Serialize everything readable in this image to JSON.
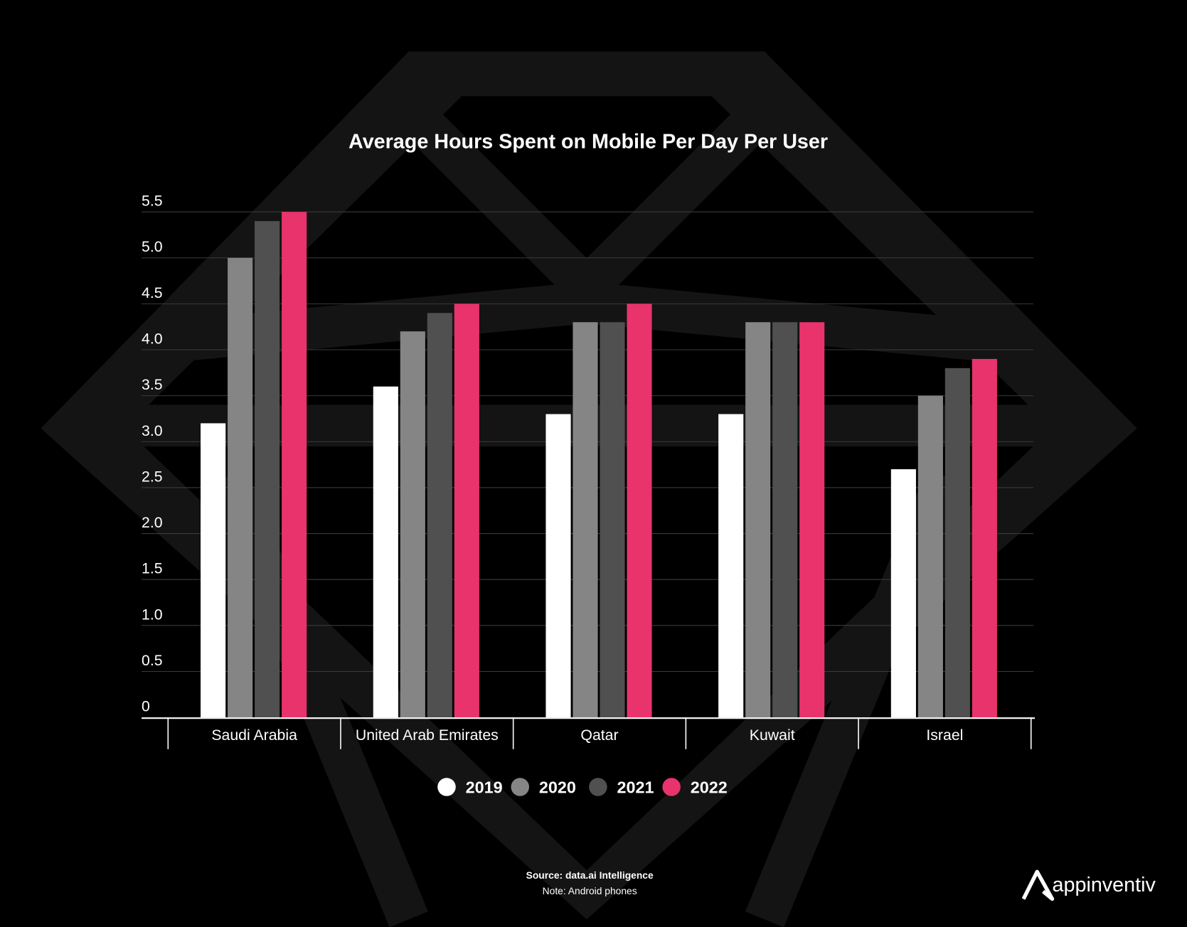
{
  "chart_data": {
    "type": "bar",
    "title": "Average Hours Spent on Mobile Per Day Per User",
    "categories": [
      "Saudi Arabia",
      "United Arab Emirates",
      "Qatar",
      "Kuwait",
      "Israel"
    ],
    "series": [
      {
        "name": "2019",
        "color": "#ffffff",
        "values": [
          3.2,
          3.6,
          3.3,
          3.3,
          2.7
        ]
      },
      {
        "name": "2020",
        "color": "#858585",
        "values": [
          5.0,
          4.2,
          4.3,
          4.3,
          3.5
        ]
      },
      {
        "name": "2021",
        "color": "#505050",
        "values": [
          5.4,
          4.4,
          4.3,
          4.3,
          3.8
        ]
      },
      {
        "name": "2022",
        "color": "#e8336d",
        "values": [
          5.5,
          4.5,
          4.5,
          4.3,
          3.9
        ]
      }
    ],
    "yticks": [
      "0",
      "0.5",
      "1.0",
      "1.5",
      "2.0",
      "2.5",
      "3.0",
      "3.5",
      "4.0",
      "4.5",
      "5.0",
      "5.5"
    ],
    "ylim": [
      0,
      5.5
    ],
    "xlabel": "",
    "ylabel": "",
    "grid": true,
    "legend_placement": "bottom"
  },
  "footer": {
    "source": "Source: data.ai Intelligence",
    "note": "Note: Android phones"
  },
  "brand": {
    "logo_text": "appinventiv"
  },
  "colors": {
    "background": "#000000",
    "watermark": "#141414",
    "grid": "#3a3a3a"
  }
}
